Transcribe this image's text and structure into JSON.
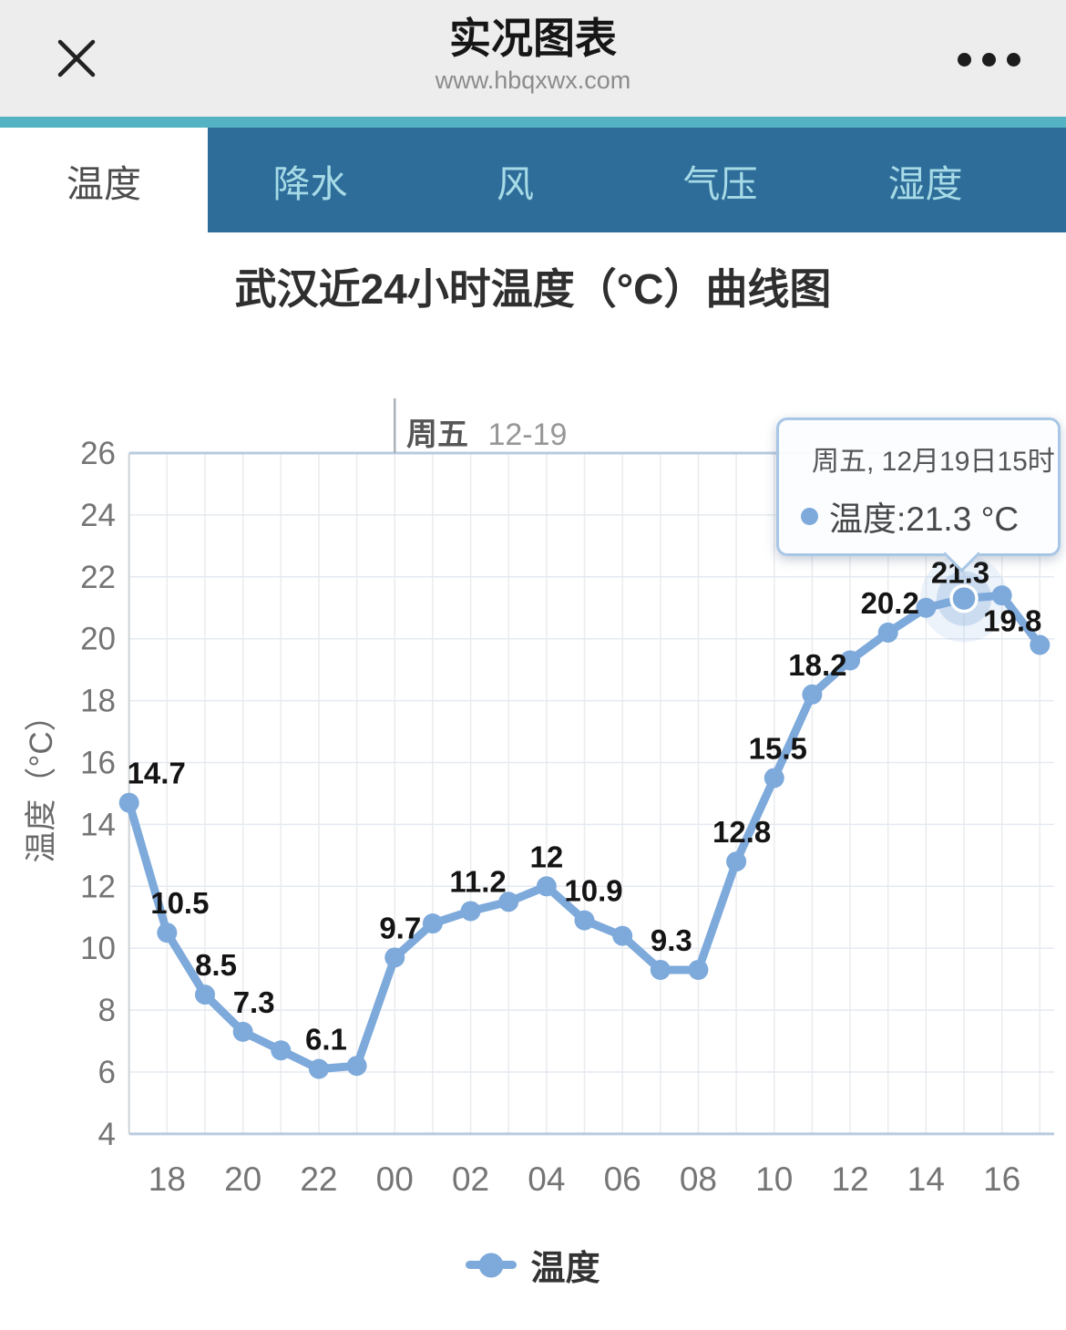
{
  "header": {
    "title": "实况图表",
    "url": "www.hbqxwx.com"
  },
  "tabs": {
    "items": [
      {
        "label": "温度",
        "active": true
      },
      {
        "label": "降水",
        "active": false
      },
      {
        "label": "风",
        "active": false
      },
      {
        "label": "气压",
        "active": false
      },
      {
        "label": "湿度",
        "active": false
      }
    ]
  },
  "chart_data": {
    "type": "line",
    "title": "武汉近24小时温度（°C）曲线图",
    "ylabel": "温度（°C）",
    "series_name": "温度",
    "x_hours": [
      "17",
      "18",
      "19",
      "20",
      "21",
      "22",
      "23",
      "00",
      "01",
      "02",
      "03",
      "04",
      "05",
      "06",
      "07",
      "08",
      "09",
      "10",
      "11",
      "12",
      "13",
      "14",
      "15",
      "16",
      "17"
    ],
    "values": [
      14.7,
      10.5,
      8.5,
      7.3,
      6.7,
      6.1,
      6.2,
      9.7,
      10.8,
      11.2,
      11.5,
      12,
      10.9,
      10.4,
      9.3,
      9.3,
      12.8,
      15.5,
      18.2,
      19.3,
      20.2,
      21.0,
      21.3,
      21.4,
      19.8
    ],
    "point_labels": [
      "14.7",
      "10.5",
      "8.5",
      "7.3",
      "",
      "6.1",
      "",
      "9.7",
      "",
      "11.2",
      "",
      "12",
      "10.9",
      "",
      "9.3",
      "",
      "12.8",
      "15.5",
      "18.2",
      "",
      "20.2",
      "",
      "21.3",
      "",
      "19.8"
    ],
    "x_tick_labels": [
      "18",
      "20",
      "22",
      "00",
      "02",
      "04",
      "06",
      "08",
      "10",
      "12",
      "14",
      "16"
    ],
    "y_ticks": [
      26,
      24,
      22,
      20,
      18,
      16,
      14,
      12,
      10,
      8,
      6,
      4
    ],
    "ylim": [
      4,
      26
    ],
    "grid": true,
    "legend_position": "bottom",
    "highlight_index": 22,
    "line_color": "#7da9db",
    "day_marker": {
      "x_index": 7,
      "day": "周五",
      "date": "12-19"
    },
    "tooltip": {
      "line1": "周五, 12月19日15时",
      "line2": "温度:21.3 °C",
      "series": "温度",
      "value": "21.3 °C"
    }
  },
  "colors": {
    "accent_line": "#7da9db",
    "tabbar_bg": "#2e6d99",
    "tab_strip": "#54b3c3",
    "tab_inactive_text": "#a6dae6",
    "header_bg": "#ededed",
    "grid_boundary": "#b9cadf"
  }
}
